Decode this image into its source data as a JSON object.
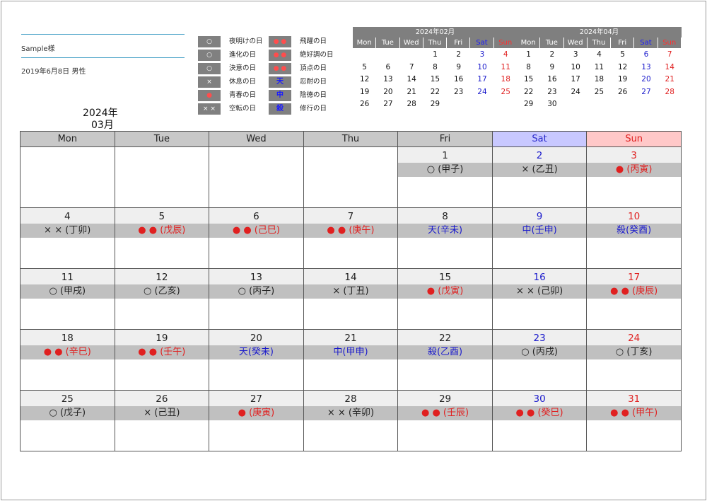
{
  "profile": {
    "name": "Sample様",
    "birth": "2019年6月8日 男性"
  },
  "title": {
    "year": "2024年",
    "month": "03月"
  },
  "legend": [
    {
      "symbol": "○",
      "symbol_color": "white",
      "label": "夜明けの日"
    },
    {
      "symbol": "○",
      "symbol_color": "white",
      "label": "進化の日"
    },
    {
      "symbol": "○",
      "symbol_color": "white",
      "label": "決意の日"
    },
    {
      "symbol": "×",
      "symbol_color": "white",
      "label": "休息の日"
    },
    {
      "symbol": "●",
      "symbol_color": "red",
      "label": "青春の日"
    },
    {
      "symbol": "× ×",
      "symbol_color": "white",
      "label": "空転の日"
    },
    {
      "symbol": "● ●",
      "symbol_color": "red",
      "label": "飛躍の日"
    },
    {
      "symbol": "● ●",
      "symbol_color": "red",
      "label": "絶好調の日"
    },
    {
      "symbol": "● ●",
      "symbol_color": "red",
      "label": "頂点の日"
    },
    {
      "symbol": "天",
      "symbol_color": "blue",
      "label": "忍耐の日"
    },
    {
      "symbol": "中",
      "symbol_color": "blue",
      "label": "陰徳の日"
    },
    {
      "symbol": "殺",
      "symbol_color": "blue",
      "label": "修行の日"
    }
  ],
  "weekdays": [
    "Mon",
    "Tue",
    "Wed",
    "Thu",
    "Fri",
    "Sat",
    "Sun"
  ],
  "mini_prev": {
    "title": "2024年02月",
    "weeks": [
      [
        "",
        "",
        "",
        "1",
        "2",
        "3",
        "4"
      ],
      [
        "5",
        "6",
        "7",
        "8",
        "9",
        "10",
        "11"
      ],
      [
        "12",
        "13",
        "14",
        "15",
        "16",
        "17",
        "18"
      ],
      [
        "19",
        "20",
        "21",
        "22",
        "23",
        "24",
        "25"
      ],
      [
        "26",
        "27",
        "28",
        "29",
        "",
        "",
        ""
      ]
    ]
  },
  "mini_next": {
    "title": "2024年04月",
    "weeks": [
      [
        "1",
        "2",
        "3",
        "4",
        "5",
        "6",
        "7"
      ],
      [
        "8",
        "9",
        "10",
        "11",
        "12",
        "13",
        "14"
      ],
      [
        "15",
        "16",
        "17",
        "18",
        "19",
        "20",
        "21"
      ],
      [
        "22",
        "23",
        "24",
        "25",
        "26",
        "27",
        "28"
      ],
      [
        "29",
        "30",
        "",
        "",
        "",
        "",
        ""
      ]
    ]
  },
  "colors": {
    "sat": "#1a1acc",
    "sun": "#e02020",
    "header_gray": "#7f7f7f"
  },
  "weeks": [
    [
      null,
      null,
      null,
      null,
      {
        "day": "1",
        "kan": "○ (甲子)",
        "tone": "black"
      },
      {
        "day": "2",
        "kan": "× (乙丑)",
        "tone": "black"
      },
      {
        "day": "3",
        "kan": "● (丙寅)",
        "tone": "red"
      }
    ],
    [
      {
        "day": "4",
        "kan": "× × (丁卯)",
        "tone": "black"
      },
      {
        "day": "5",
        "kan": "● ● (戊辰)",
        "tone": "red"
      },
      {
        "day": "6",
        "kan": "● ● (己巳)",
        "tone": "red"
      },
      {
        "day": "7",
        "kan": "● ● (庚午)",
        "tone": "red"
      },
      {
        "day": "8",
        "kan": "天(辛未)",
        "tone": "blue"
      },
      {
        "day": "9",
        "kan": "中(壬申)",
        "tone": "blue"
      },
      {
        "day": "10",
        "kan": "殺(癸酉)",
        "tone": "blue"
      }
    ],
    [
      {
        "day": "11",
        "kan": "○ (甲戌)",
        "tone": "black"
      },
      {
        "day": "12",
        "kan": "○ (乙亥)",
        "tone": "black"
      },
      {
        "day": "13",
        "kan": "○ (丙子)",
        "tone": "black"
      },
      {
        "day": "14",
        "kan": "× (丁丑)",
        "tone": "black"
      },
      {
        "day": "15",
        "kan": "● (戊寅)",
        "tone": "red"
      },
      {
        "day": "16",
        "kan": "× × (己卯)",
        "tone": "black"
      },
      {
        "day": "17",
        "kan": "● ● (庚辰)",
        "tone": "red"
      }
    ],
    [
      {
        "day": "18",
        "kan": "● ● (辛巳)",
        "tone": "red"
      },
      {
        "day": "19",
        "kan": "● ● (壬午)",
        "tone": "red"
      },
      {
        "day": "20",
        "kan": "天(癸未)",
        "tone": "blue"
      },
      {
        "day": "21",
        "kan": "中(甲申)",
        "tone": "blue"
      },
      {
        "day": "22",
        "kan": "殺(乙酉)",
        "tone": "blue"
      },
      {
        "day": "23",
        "kan": "○ (丙戌)",
        "tone": "black"
      },
      {
        "day": "24",
        "kan": "○ (丁亥)",
        "tone": "black"
      }
    ],
    [
      {
        "day": "25",
        "kan": "○ (戊子)",
        "tone": "black"
      },
      {
        "day": "26",
        "kan": "× (己丑)",
        "tone": "black"
      },
      {
        "day": "27",
        "kan": "● (庚寅)",
        "tone": "red"
      },
      {
        "day": "28",
        "kan": "× × (辛卯)",
        "tone": "black"
      },
      {
        "day": "29",
        "kan": "● ● (壬辰)",
        "tone": "red"
      },
      {
        "day": "30",
        "kan": "● ● (癸巳)",
        "tone": "red"
      },
      {
        "day": "31",
        "kan": "● ● (甲午)",
        "tone": "red"
      }
    ]
  ]
}
